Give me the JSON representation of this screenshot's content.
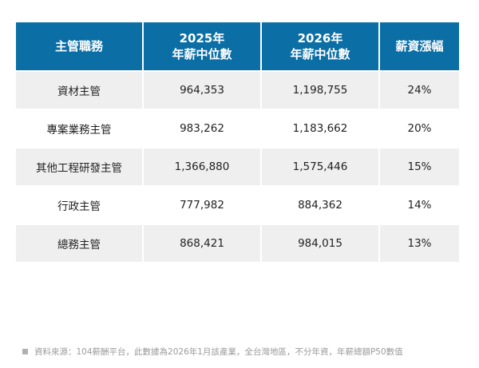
{
  "table": {
    "header": [
      "主管職務",
      [
        "2025年",
        "年薪中位數"
      ],
      [
        "2026年",
        "年薪中位數"
      ],
      "薪資漲幅"
    ],
    "rows": [
      [
        "資材主管",
        "964,353",
        "1,198,755",
        "24%"
      ],
      [
        "專案業務主管",
        "983,262",
        "1,183,662",
        "20%"
      ],
      [
        "其他工程研發主管",
        "1,366,880",
        "1,575,446",
        "15%"
      ],
      [
        "行政主管",
        "777,982",
        "884,362",
        "14%"
      ],
      [
        "總務主管",
        "868,421",
        "984,015",
        "13%"
      ]
    ]
  },
  "footnote": "資料來源：104薪酬平台，此數據為2026年1月該產業，全台灣地區，不分年資，年薪總額P50數值"
}
